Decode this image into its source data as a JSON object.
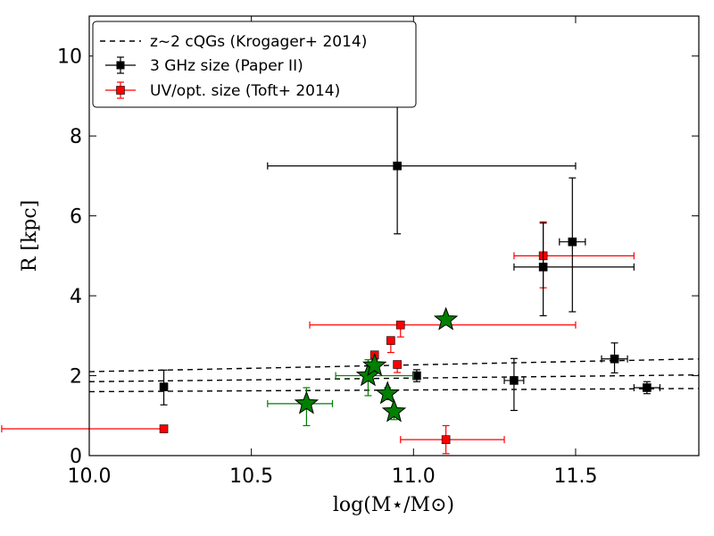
{
  "chart_data": {
    "type": "scatter",
    "xlabel": "log(M⋆/M⊙)",
    "ylabel": "R [kpc]",
    "xlim": [
      10.0,
      11.88
    ],
    "ylim": [
      0,
      11
    ],
    "x_ticks": [
      "10.0",
      "10.5",
      "11.0",
      "11.5"
    ],
    "y_ticks": [
      "0",
      "2",
      "4",
      "6",
      "8",
      "10"
    ],
    "legend_position": "top-left",
    "legend": [
      "z~2 cQGs (Krogager+ 2014)",
      "3 GHz size (Paper II)",
      "UV/opt. size (Toft+ 2014)"
    ],
    "reference_lines": [
      {
        "name": "z~2 cQGs (Krogager+ 2014)",
        "style": "dashed",
        "color": "#000000",
        "lines": [
          [
            [
              10.0,
              2.1
            ],
            [
              11.88,
              2.42
            ]
          ],
          [
            [
              10.0,
              1.85
            ],
            [
              11.88,
              2.02
            ]
          ],
          [
            [
              10.0,
              1.6
            ],
            [
              11.88,
              1.68
            ]
          ]
        ]
      }
    ],
    "series": [
      {
        "name": "3 GHz size (Paper II)",
        "color": "#000000",
        "marker": "square",
        "points": [
          {
            "x": 10.23,
            "y": 1.72,
            "xerr": [
              0.0,
              0.0
            ],
            "yerr": [
              0.45,
              0.42
            ]
          },
          {
            "x": 10.95,
            "y": 7.25,
            "xerr": [
              0.4,
              0.55
            ],
            "yerr": [
              1.7,
              1.5
            ]
          },
          {
            "x": 11.49,
            "y": 5.35,
            "xerr": [
              0.04,
              0.04
            ],
            "yerr": [
              1.75,
              1.6
            ]
          },
          {
            "x": 11.4,
            "y": 4.72,
            "xerr": [
              0.09,
              0.28
            ],
            "yerr": [
              1.22,
              1.1
            ]
          },
          {
            "x": 11.01,
            "y": 2.0,
            "xerr": [
              0.0,
              0.0
            ],
            "yerr": [
              0.15,
              0.15
            ]
          },
          {
            "x": 11.31,
            "y": 1.88,
            "xerr": [
              0.03,
              0.03
            ],
            "yerr": [
              0.75,
              0.55
            ]
          },
          {
            "x": 11.62,
            "y": 2.42,
            "xerr": [
              0.04,
              0.04
            ],
            "yerr": [
              0.35,
              0.4
            ]
          },
          {
            "x": 11.72,
            "y": 1.7,
            "xerr": [
              0.04,
              0.04
            ],
            "yerr": [
              0.15,
              0.15
            ]
          }
        ]
      },
      {
        "name": "UV/opt. size (Toft+ 2014)",
        "color": "#ff0000",
        "marker": "square",
        "points": [
          {
            "x": 10.23,
            "y": 0.67,
            "xerr": [
              0.5,
              0.0
            ],
            "yerr": [
              0.0,
              0.0
            ]
          },
          {
            "x": 11.4,
            "y": 5.0,
            "xerr": [
              0.09,
              0.28
            ],
            "yerr": [
              0.8,
              0.85
            ]
          },
          {
            "x": 10.96,
            "y": 3.27,
            "xerr": [
              0.28,
              0.54
            ],
            "yerr": [
              0.3,
              0.0
            ]
          },
          {
            "x": 10.93,
            "y": 2.88,
            "xerr": [
              0.0,
              0.0
            ],
            "yerr": [
              0.3,
              0.0
            ]
          },
          {
            "x": 10.88,
            "y": 2.52,
            "xerr": [
              0.0,
              0.0
            ],
            "yerr": [
              0.2,
              0.0
            ]
          },
          {
            "x": 10.95,
            "y": 2.28,
            "xerr": [
              0.0,
              0.0
            ],
            "yerr": [
              0.2,
              0.0
            ]
          },
          {
            "x": 11.1,
            "y": 0.4,
            "xerr": [
              0.14,
              0.18
            ],
            "yerr": [
              0.35,
              0.35
            ]
          }
        ]
      },
      {
        "name": "stars",
        "color": "#008000",
        "marker": "star",
        "points": [
          {
            "x": 10.67,
            "y": 1.3,
            "xerr": [
              0.12,
              0.08
            ],
            "yerr": [
              0.55,
              0.4
            ]
          },
          {
            "x": 10.86,
            "y": 2.0,
            "xerr": [
              0.1,
              0.14
            ],
            "yerr": [
              0.5,
              0.4
            ]
          },
          {
            "x": 10.88,
            "y": 2.25,
            "xerr": [
              0.0,
              0.0
            ],
            "yerr": [
              0.15,
              0.15
            ]
          },
          {
            "x": 10.92,
            "y": 1.55,
            "xerr": [
              0.0,
              0.0
            ],
            "yerr": [
              0.15,
              0.15
            ]
          },
          {
            "x": 10.94,
            "y": 1.1,
            "xerr": [
              0.0,
              0.0
            ],
            "yerr": [
              0.2,
              0.0
            ]
          },
          {
            "x": 11.1,
            "y": 3.4,
            "xerr": [
              0.0,
              0.0
            ],
            "yerr": [
              0.0,
              0.0
            ]
          }
        ]
      }
    ]
  }
}
